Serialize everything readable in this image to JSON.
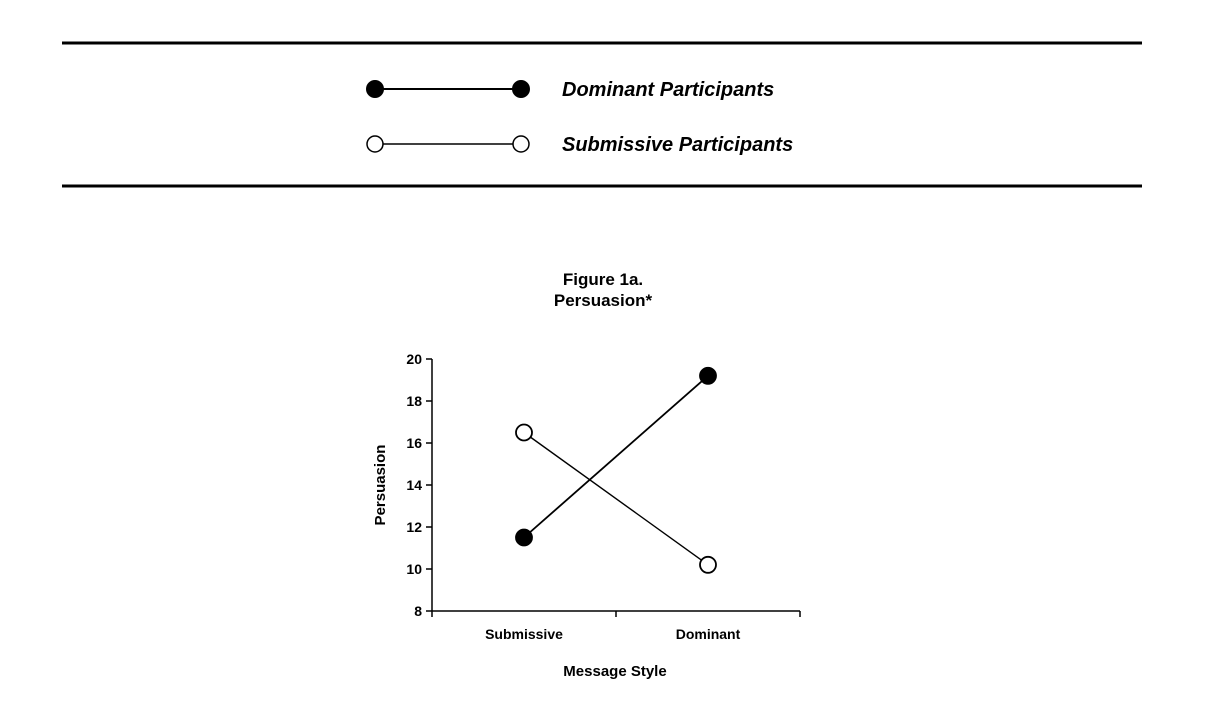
{
  "colors": {
    "ink": "#000000",
    "background": "#ffffff"
  },
  "legend": {
    "items": [
      {
        "label": "Dominant Participants",
        "marker": "filled-circle"
      },
      {
        "label": "Submissive Participants",
        "marker": "open-circle"
      }
    ]
  },
  "chart_data": {
    "type": "line",
    "title": "Figure 1a.",
    "subtitle": "Persuasion*",
    "xlabel": "Message Style",
    "ylabel": "Persuasion",
    "categories": [
      "Submissive",
      "Dominant"
    ],
    "ylim": [
      8,
      20
    ],
    "yticks": [
      8,
      10,
      12,
      14,
      16,
      18,
      20
    ],
    "grid": false,
    "legend_position": "top",
    "series": [
      {
        "name": "Dominant Participants",
        "marker": "filled-circle",
        "values": [
          11.5,
          19.2
        ]
      },
      {
        "name": "Submissive Participants",
        "marker": "open-circle",
        "values": [
          16.5,
          10.2
        ]
      }
    ]
  }
}
